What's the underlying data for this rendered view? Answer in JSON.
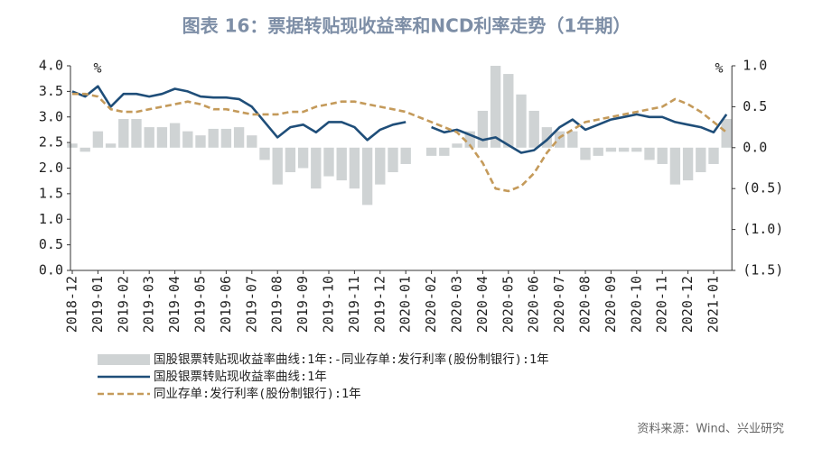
{
  "chart_data": {
    "type": "combo",
    "title": "图表 16：票据转贴现收益率和NCD利率走势（1年期）",
    "y_unit": "%",
    "y2_unit": "%",
    "source": "资料来源：Wind、兴业研究",
    "categories": [
      "2018-12",
      null,
      "2019-01",
      null,
      "2019-02",
      null,
      "2019-03",
      null,
      "2019-04",
      null,
      "2019-05",
      null,
      "2019-06",
      null,
      "2019-07",
      null,
      "2019-08",
      null,
      "2019-09",
      null,
      "2019-10",
      null,
      "2019-11",
      null,
      "2019-12",
      null,
      "2020-01",
      null,
      "2020-02",
      null,
      "2020-03",
      null,
      "2020-04",
      null,
      "2020-05",
      null,
      "2020-06",
      null,
      "2020-07",
      null,
      "2020-08",
      null,
      "2020-09",
      null,
      "2020-10",
      null,
      "2020-11",
      null,
      "2020-12",
      null,
      "2021-01",
      null
    ],
    "series": [
      {
        "name": "国股银票转贴现收益率曲线:1年:-同业存单:发行利率(股份制银行):1年",
        "type": "bar",
        "axis": "y2",
        "color": "#cfd3d4",
        "values": [
          0.05,
          -0.05,
          0.2,
          0.05,
          0.35,
          0.35,
          0.25,
          0.25,
          0.3,
          0.2,
          0.15,
          0.23,
          0.23,
          0.25,
          0.15,
          -0.15,
          -0.45,
          -0.3,
          -0.25,
          -0.5,
          -0.35,
          -0.4,
          -0.5,
          -0.7,
          -0.45,
          -0.3,
          -0.2,
          null,
          -0.1,
          -0.1,
          0.05,
          0.2,
          0.45,
          1.0,
          0.9,
          0.65,
          0.45,
          0.25,
          0.2,
          0.2,
          -0.15,
          -0.1,
          -0.05,
          -0.05,
          -0.05,
          -0.15,
          -0.2,
          -0.45,
          -0.4,
          -0.3,
          -0.2,
          0.35
        ]
      },
      {
        "name": "国股银票转贴现收益率曲线:1年",
        "type": "line",
        "color": "#1f4e79",
        "dashed": false,
        "values": [
          3.5,
          3.4,
          3.6,
          3.2,
          3.45,
          3.45,
          3.4,
          3.45,
          3.55,
          3.5,
          3.4,
          3.38,
          3.38,
          3.35,
          3.2,
          2.9,
          2.6,
          2.8,
          2.85,
          2.7,
          2.9,
          2.9,
          2.8,
          2.55,
          2.75,
          2.85,
          2.9,
          null,
          2.8,
          2.7,
          2.75,
          2.65,
          2.55,
          2.6,
          2.45,
          2.3,
          2.35,
          2.55,
          2.8,
          2.95,
          2.75,
          2.85,
          2.95,
          3.0,
          3.05,
          3.0,
          3.0,
          2.9,
          2.85,
          2.8,
          2.7,
          3.05
        ]
      },
      {
        "name": "同业存单:发行利率(股份制银行):1年",
        "type": "line",
        "color": "#c49a5a",
        "dashed": true,
        "values": [
          3.45,
          3.45,
          3.4,
          3.15,
          3.1,
          3.1,
          3.15,
          3.2,
          3.25,
          3.3,
          3.25,
          3.15,
          3.15,
          3.1,
          3.05,
          3.05,
          3.05,
          3.1,
          3.1,
          3.2,
          3.25,
          3.3,
          3.3,
          3.25,
          3.2,
          3.15,
          3.1,
          3.0,
          2.9,
          2.8,
          2.7,
          2.45,
          2.1,
          1.6,
          1.55,
          1.65,
          1.9,
          2.3,
          2.6,
          2.75,
          2.9,
          2.95,
          3.0,
          3.05,
          3.1,
          3.15,
          3.2,
          3.35,
          3.25,
          3.1,
          2.9,
          2.7
        ]
      }
    ],
    "ylim": [
      0,
      4
    ],
    "yticks": [
      {
        "value": 0,
        "label": "0.0"
      },
      0.5,
      {
        "value": 1,
        "label": "1.0"
      },
      1.5,
      {
        "value": 2,
        "label": "2.0"
      },
      2.5,
      {
        "value": 3,
        "label": "3.0"
      },
      3.5,
      {
        "value": 4,
        "label": "4.0"
      }
    ],
    "y2lim": [
      -1.5,
      1
    ],
    "y2ticks": [
      {
        "value": -1.5,
        "label": "(1.5)"
      },
      {
        "value": -1,
        "label": "(1.0)"
      },
      {
        "value": -0.5,
        "label": "(0.5)"
      },
      {
        "value": 0,
        "label": "0.0"
      },
      0.5,
      {
        "value": 1,
        "label": "1.0"
      }
    ],
    "negative_tick_color": "#e0302e",
    "legend": "bottom"
  }
}
